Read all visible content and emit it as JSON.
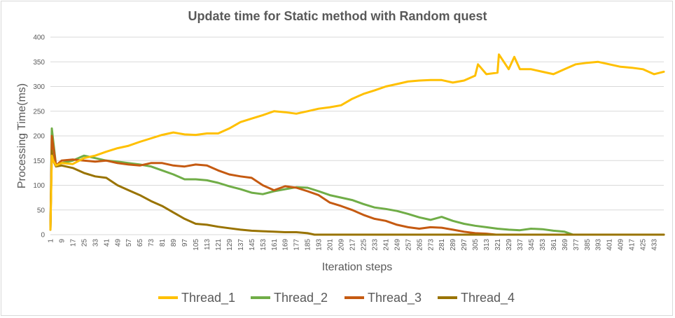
{
  "chart_data": {
    "type": "line",
    "title": "Update time for Static method with Random quest",
    "xlabel": "Iteration steps",
    "ylabel": "Processing Time(ms)",
    "ylim": [
      0,
      400
    ],
    "yticks": [
      0,
      50,
      100,
      150,
      200,
      250,
      300,
      350,
      400
    ],
    "xlim": [
      1,
      440
    ],
    "xticks": [
      1,
      9,
      17,
      25,
      33,
      41,
      49,
      57,
      65,
      73,
      81,
      89,
      97,
      105,
      113,
      121,
      129,
      137,
      145,
      153,
      161,
      169,
      177,
      185,
      193,
      201,
      209,
      217,
      225,
      233,
      241,
      249,
      257,
      265,
      273,
      281,
      289,
      297,
      305,
      313,
      321,
      329,
      337,
      345,
      353,
      361,
      369,
      377,
      385,
      393,
      401,
      409,
      417,
      425,
      433
    ],
    "grid": true,
    "legend_position": "bottom",
    "series": [
      {
        "name": "Thread_1",
        "color": "#FFC000",
        "points": [
          [
            1,
            10
          ],
          [
            2,
            160
          ],
          [
            3,
            150
          ],
          [
            5,
            140
          ],
          [
            9,
            145
          ],
          [
            17,
            143
          ],
          [
            25,
            155
          ],
          [
            33,
            160
          ],
          [
            41,
            168
          ],
          [
            49,
            175
          ],
          [
            57,
            180
          ],
          [
            65,
            188
          ],
          [
            73,
            195
          ],
          [
            81,
            202
          ],
          [
            89,
            207
          ],
          [
            97,
            203
          ],
          [
            105,
            202
          ],
          [
            113,
            205
          ],
          [
            121,
            205
          ],
          [
            129,
            215
          ],
          [
            137,
            228
          ],
          [
            145,
            235
          ],
          [
            153,
            242
          ],
          [
            161,
            250
          ],
          [
            169,
            248
          ],
          [
            177,
            245
          ],
          [
            185,
            250
          ],
          [
            193,
            255
          ],
          [
            201,
            258
          ],
          [
            209,
            262
          ],
          [
            217,
            275
          ],
          [
            225,
            285
          ],
          [
            233,
            292
          ],
          [
            241,
            300
          ],
          [
            249,
            305
          ],
          [
            257,
            310
          ],
          [
            265,
            312
          ],
          [
            273,
            313
          ],
          [
            281,
            313
          ],
          [
            289,
            308
          ],
          [
            297,
            312
          ],
          [
            305,
            322
          ],
          [
            307,
            345
          ],
          [
            313,
            325
          ],
          [
            321,
            328
          ],
          [
            322,
            365
          ],
          [
            329,
            335
          ],
          [
            333,
            360
          ],
          [
            337,
            335
          ],
          [
            345,
            335
          ],
          [
            353,
            330
          ],
          [
            361,
            325
          ],
          [
            369,
            335
          ],
          [
            377,
            345
          ],
          [
            385,
            348
          ],
          [
            393,
            350
          ],
          [
            401,
            345
          ],
          [
            409,
            340
          ],
          [
            417,
            338
          ],
          [
            425,
            335
          ],
          [
            433,
            325
          ],
          [
            440,
            330
          ]
        ]
      },
      {
        "name": "Thread_2",
        "color": "#70AD47",
        "points": [
          [
            1,
            10
          ],
          [
            2,
            215
          ],
          [
            3,
            190
          ],
          [
            5,
            140
          ],
          [
            9,
            145
          ],
          [
            17,
            150
          ],
          [
            25,
            160
          ],
          [
            33,
            155
          ],
          [
            41,
            150
          ],
          [
            49,
            148
          ],
          [
            57,
            145
          ],
          [
            65,
            142
          ],
          [
            73,
            138
          ],
          [
            81,
            130
          ],
          [
            89,
            122
          ],
          [
            97,
            112
          ],
          [
            105,
            112
          ],
          [
            113,
            110
          ],
          [
            121,
            105
          ],
          [
            129,
            98
          ],
          [
            137,
            92
          ],
          [
            145,
            85
          ],
          [
            153,
            82
          ],
          [
            161,
            88
          ],
          [
            169,
            92
          ],
          [
            177,
            96
          ],
          [
            185,
            95
          ],
          [
            193,
            88
          ],
          [
            201,
            80
          ],
          [
            209,
            75
          ],
          [
            217,
            70
          ],
          [
            225,
            62
          ],
          [
            233,
            55
          ],
          [
            241,
            52
          ],
          [
            249,
            48
          ],
          [
            257,
            42
          ],
          [
            265,
            35
          ],
          [
            273,
            30
          ],
          [
            281,
            36
          ],
          [
            289,
            28
          ],
          [
            297,
            22
          ],
          [
            305,
            18
          ],
          [
            313,
            15
          ],
          [
            321,
            12
          ],
          [
            329,
            10
          ],
          [
            337,
            9
          ],
          [
            345,
            12
          ],
          [
            353,
            11
          ],
          [
            361,
            8
          ],
          [
            369,
            6
          ],
          [
            375,
            0
          ],
          [
            440,
            0
          ]
        ]
      },
      {
        "name": "Thread_3",
        "color": "#C55A11",
        "points": [
          [
            1,
            10
          ],
          [
            2,
            200
          ],
          [
            3,
            180
          ],
          [
            5,
            140
          ],
          [
            9,
            150
          ],
          [
            17,
            152
          ],
          [
            25,
            150
          ],
          [
            33,
            148
          ],
          [
            41,
            150
          ],
          [
            49,
            145
          ],
          [
            57,
            142
          ],
          [
            65,
            140
          ],
          [
            73,
            145
          ],
          [
            81,
            145
          ],
          [
            89,
            140
          ],
          [
            97,
            138
          ],
          [
            105,
            142
          ],
          [
            113,
            140
          ],
          [
            121,
            130
          ],
          [
            129,
            122
          ],
          [
            137,
            118
          ],
          [
            145,
            115
          ],
          [
            153,
            100
          ],
          [
            161,
            90
          ],
          [
            169,
            98
          ],
          [
            177,
            95
          ],
          [
            185,
            88
          ],
          [
            193,
            80
          ],
          [
            201,
            65
          ],
          [
            209,
            58
          ],
          [
            217,
            50
          ],
          [
            225,
            40
          ],
          [
            233,
            32
          ],
          [
            241,
            28
          ],
          [
            249,
            20
          ],
          [
            257,
            15
          ],
          [
            265,
            12
          ],
          [
            273,
            15
          ],
          [
            281,
            14
          ],
          [
            289,
            10
          ],
          [
            297,
            6
          ],
          [
            305,
            3
          ],
          [
            313,
            2
          ],
          [
            320,
            0
          ],
          [
            440,
            0
          ]
        ]
      },
      {
        "name": "Thread_4",
        "color": "#997300",
        "points": [
          [
            1,
            10
          ],
          [
            2,
            170
          ],
          [
            3,
            150
          ],
          [
            5,
            138
          ],
          [
            9,
            140
          ],
          [
            17,
            135
          ],
          [
            25,
            125
          ],
          [
            33,
            118
          ],
          [
            41,
            115
          ],
          [
            49,
            100
          ],
          [
            57,
            90
          ],
          [
            65,
            80
          ],
          [
            73,
            68
          ],
          [
            81,
            58
          ],
          [
            89,
            45
          ],
          [
            97,
            32
          ],
          [
            105,
            22
          ],
          [
            113,
            20
          ],
          [
            121,
            16
          ],
          [
            129,
            13
          ],
          [
            137,
            10
          ],
          [
            145,
            8
          ],
          [
            153,
            7
          ],
          [
            161,
            6
          ],
          [
            169,
            5
          ],
          [
            177,
            5
          ],
          [
            185,
            3
          ],
          [
            190,
            0
          ],
          [
            440,
            0
          ]
        ]
      }
    ]
  }
}
